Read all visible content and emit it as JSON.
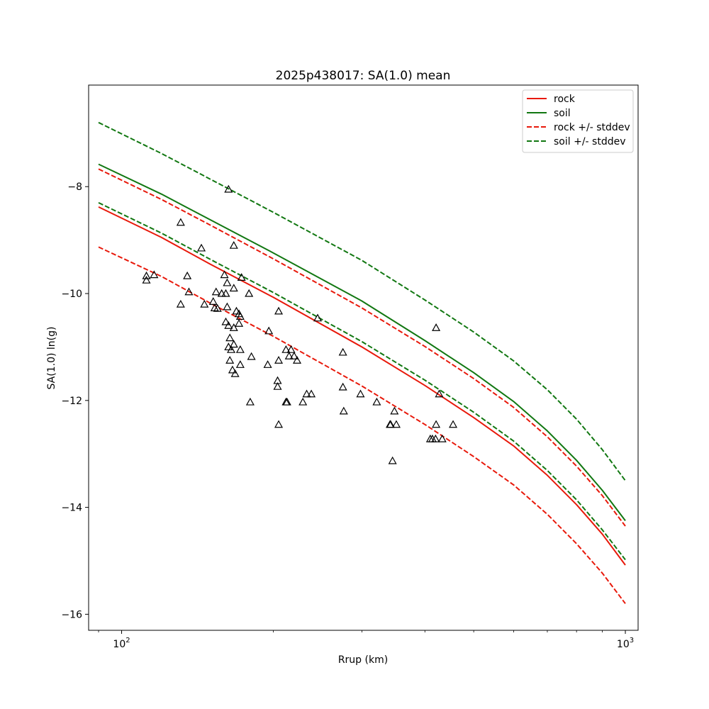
{
  "chart_data": {
    "type": "line",
    "title": "2025p438017: SA(1.0) mean",
    "xlabel": "Rrup (km)",
    "ylabel": "SA(1.0) ln(g)",
    "x_scale": "log",
    "xlim": [
      86,
      1060
    ],
    "ylim": [
      -16.3,
      -6.1
    ],
    "x_ticks": [
      {
        "value": 100,
        "label": "10^2"
      },
      {
        "value": 1000,
        "label": "10^3"
      }
    ],
    "y_ticks": [
      -16,
      -14,
      -12,
      -10,
      -8
    ],
    "grid": false,
    "legend_position": "upper-right",
    "x": [
      90,
      120,
      150,
      200,
      300,
      400,
      500,
      600,
      700,
      800,
      900,
      1000
    ],
    "series": [
      {
        "name": "rock",
        "style": "solid",
        "color": "#e8190b",
        "values": [
          -8.38,
          -8.95,
          -9.45,
          -10.07,
          -11.0,
          -11.72,
          -12.32,
          -12.85,
          -13.4,
          -13.95,
          -14.5,
          -15.08
        ]
      },
      {
        "name": "soil",
        "style": "solid",
        "color": "#117711",
        "values": [
          -7.58,
          -8.14,
          -8.62,
          -9.24,
          -10.14,
          -10.88,
          -11.48,
          -12.02,
          -12.57,
          -13.12,
          -13.68,
          -14.25
        ]
      },
      {
        "name": "rock +/- stddev",
        "style": "dashed",
        "color": "#e8190b",
        "values": [
          -7.67,
          -8.24,
          -8.72,
          -9.35,
          -10.27,
          -10.99,
          -11.59,
          -12.13,
          -12.68,
          -13.23,
          -13.78,
          -14.35
        ]
      },
      {
        "name": "rock +/- stddev",
        "style": "dashed",
        "color": "#e8190b",
        "legend": false,
        "values": [
          -9.13,
          -9.68,
          -10.18,
          -10.8,
          -11.73,
          -12.45,
          -13.05,
          -13.58,
          -14.13,
          -14.68,
          -15.23,
          -15.8
        ]
      },
      {
        "name": "soil +/- stddev",
        "style": "dashed",
        "color": "#117711",
        "values": [
          -6.8,
          -7.38,
          -7.86,
          -8.48,
          -9.38,
          -10.12,
          -10.72,
          -11.26,
          -11.8,
          -12.35,
          -12.92,
          -13.5
        ]
      },
      {
        "name": "soil +/- stddev",
        "style": "dashed",
        "color": "#117711",
        "legend": false,
        "values": [
          -8.3,
          -8.87,
          -9.36,
          -9.98,
          -10.9,
          -11.62,
          -12.22,
          -12.76,
          -13.31,
          -13.86,
          -14.42,
          -14.98
        ]
      }
    ],
    "observations": [
      {
        "x": 163,
        "y": -8.05
      },
      {
        "x": 131,
        "y": -8.67
      },
      {
        "x": 144,
        "y": -9.15
      },
      {
        "x": 167,
        "y": -9.1
      },
      {
        "x": 112,
        "y": -9.67
      },
      {
        "x": 116,
        "y": -9.65
      },
      {
        "x": 112,
        "y": -9.75
      },
      {
        "x": 135,
        "y": -9.67
      },
      {
        "x": 160,
        "y": -9.65
      },
      {
        "x": 173,
        "y": -9.7
      },
      {
        "x": 162,
        "y": -9.8
      },
      {
        "x": 167,
        "y": -9.9
      },
      {
        "x": 136,
        "y": -9.97
      },
      {
        "x": 154,
        "y": -9.97
      },
      {
        "x": 158,
        "y": -10.0
      },
      {
        "x": 161,
        "y": -10.0
      },
      {
        "x": 179,
        "y": -10.0
      },
      {
        "x": 152,
        "y": -10.15
      },
      {
        "x": 131,
        "y": -10.2
      },
      {
        "x": 146,
        "y": -10.2
      },
      {
        "x": 153,
        "y": -10.27
      },
      {
        "x": 155,
        "y": -10.28
      },
      {
        "x": 162,
        "y": -10.25
      },
      {
        "x": 169,
        "y": -10.33
      },
      {
        "x": 171,
        "y": -10.38
      },
      {
        "x": 172,
        "y": -10.43
      },
      {
        "x": 171,
        "y": -10.56
      },
      {
        "x": 161,
        "y": -10.53
      },
      {
        "x": 163,
        "y": -10.6
      },
      {
        "x": 167,
        "y": -10.64
      },
      {
        "x": 205,
        "y": -10.33
      },
      {
        "x": 245,
        "y": -10.46
      },
      {
        "x": 196,
        "y": -10.7
      },
      {
        "x": 164,
        "y": -10.83
      },
      {
        "x": 167,
        "y": -10.95
      },
      {
        "x": 163,
        "y": -11.0
      },
      {
        "x": 165,
        "y": -11.05
      },
      {
        "x": 172,
        "y": -11.05
      },
      {
        "x": 212,
        "y": -11.05
      },
      {
        "x": 217,
        "y": -11.05
      },
      {
        "x": 275,
        "y": -11.1
      },
      {
        "x": 164,
        "y": -11.25
      },
      {
        "x": 181,
        "y": -11.18
      },
      {
        "x": 205,
        "y": -11.25
      },
      {
        "x": 215,
        "y": -11.17
      },
      {
        "x": 220,
        "y": -11.17
      },
      {
        "x": 223,
        "y": -11.25
      },
      {
        "x": 172,
        "y": -11.33
      },
      {
        "x": 195,
        "y": -11.33
      },
      {
        "x": 166,
        "y": -11.43
      },
      {
        "x": 168,
        "y": -11.5
      },
      {
        "x": 204,
        "y": -11.63
      },
      {
        "x": 204,
        "y": -11.74
      },
      {
        "x": 275,
        "y": -11.75
      },
      {
        "x": 233,
        "y": -11.88
      },
      {
        "x": 238,
        "y": -11.88
      },
      {
        "x": 298,
        "y": -11.88
      },
      {
        "x": 180,
        "y": -12.03
      },
      {
        "x": 212,
        "y": -12.03
      },
      {
        "x": 213,
        "y": -12.03
      },
      {
        "x": 229,
        "y": -12.03
      },
      {
        "x": 321,
        "y": -12.03
      },
      {
        "x": 276,
        "y": -12.2
      },
      {
        "x": 348,
        "y": -12.2
      },
      {
        "x": 205,
        "y": -12.45
      },
      {
        "x": 341,
        "y": -12.45
      },
      {
        "x": 342,
        "y": -12.45
      },
      {
        "x": 351,
        "y": -12.45
      },
      {
        "x": 421,
        "y": -12.45
      },
      {
        "x": 455,
        "y": -12.45
      },
      {
        "x": 410,
        "y": -12.72
      },
      {
        "x": 414,
        "y": -12.72
      },
      {
        "x": 420,
        "y": -12.72
      },
      {
        "x": 433,
        "y": -12.72
      },
      {
        "x": 345,
        "y": -13.13
      },
      {
        "x": 421,
        "y": -10.64
      },
      {
        "x": 427,
        "y": -11.88
      }
    ]
  }
}
